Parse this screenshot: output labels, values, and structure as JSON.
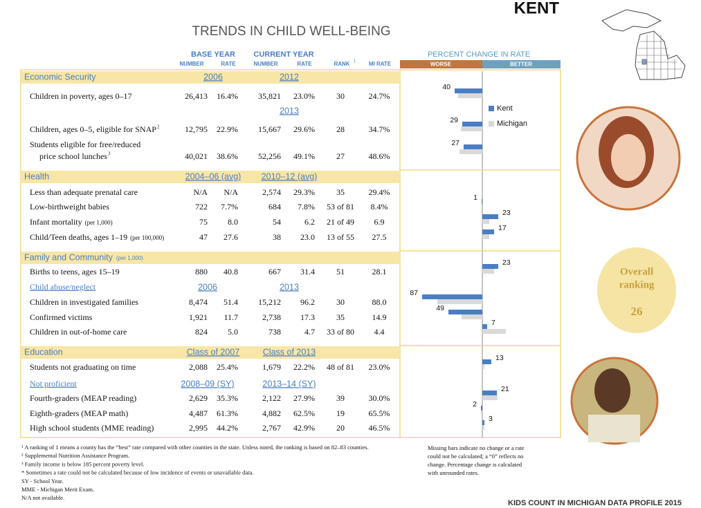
{
  "header": {
    "county": "KENT",
    "title": "TRENDS IN CHILD WELL-BEING"
  },
  "columns": {
    "base_year": "BASE YEAR",
    "current_year": "CURRENT YEAR",
    "sub": [
      "NUMBER",
      "RATE",
      "NUMBER",
      "RATE"
    ],
    "rank": "RANK",
    "rank_mark": "1",
    "mi_rate": "MI RATE"
  },
  "chart": {
    "title": "PERCENT CHANGE IN RATE",
    "worse": "WORSE",
    "better": "BETTER",
    "series": [
      {
        "name": "Kent",
        "color": "#4a7ec4",
        "values": [
          40,
          29,
          27,
          null,
          1,
          23,
          17,
          23,
          87,
          49,
          7,
          13,
          21,
          2,
          3
        ],
        "directions": [
          "worse",
          "worse",
          "worse",
          null,
          "worse",
          "better",
          "better",
          "better",
          "worse",
          "worse",
          "better",
          "better",
          "better",
          "worse",
          "better"
        ]
      },
      {
        "name": "Michigan",
        "color": "#d9d9d9",
        "values": [
          35,
          31,
          33,
          null,
          null,
          10,
          10,
          17,
          65,
          30,
          34,
          3,
          22,
          2,
          3
        ],
        "directions": [
          "worse",
          "worse",
          "worse",
          null,
          null,
          "better",
          "better",
          "better",
          "worse",
          "worse",
          "better",
          "better",
          "better",
          "worse",
          "better"
        ]
      }
    ]
  },
  "sections": [
    {
      "name": "Economic Security",
      "base": "2006",
      "current": "2012",
      "rows": [
        {
          "label": "Children in poverty, ages 0–17",
          "cells": [
            "26,413",
            "16.4%",
            "35,821",
            "23.0%",
            "30",
            "24.7%"
          ]
        },
        {
          "current": "2013"
        },
        {
          "label": "Children, ages 0–5, eligible for SNAP",
          "sup": "2",
          "cells": [
            "12,795",
            "22.9%",
            "15,667",
            "29.6%",
            "28",
            "34.7%"
          ]
        },
        {
          "label_lines": [
            "Students eligible for free/reduced",
            "price school lunches"
          ],
          "sup": "3",
          "cells": [
            "40,021",
            "38.6%",
            "52,256",
            "49.1%",
            "27",
            "48.6%"
          ]
        }
      ]
    },
    {
      "name": "Health",
      "base": "2004–06 (avg)",
      "current": "2010–12 (avg)",
      "rows": [
        {
          "label": "Less than adequate prenatal care",
          "cells": [
            "N/A",
            "N/A",
            "2,574",
            "29.3%",
            "35",
            "29.4%"
          ]
        },
        {
          "label": "Low-birthweight babies",
          "cells": [
            "722",
            "7.7%",
            "684",
            "7.8%",
            "53 of 81",
            "8.4%"
          ]
        },
        {
          "label": "Infant mortality",
          "note": "(per 1,000)",
          "cells": [
            "75",
            "8.0",
            "54",
            "6.2",
            "21 of 49",
            "6.9"
          ]
        },
        {
          "label": "Child/Teen deaths, ages 1–19",
          "note": "(per 100,000)",
          "cells": [
            "47",
            "27.6",
            "38",
            "23.0",
            "13 of 55",
            "27.5"
          ]
        }
      ]
    },
    {
      "name": "Family and Community",
      "note": "(per 1,000)",
      "rows": [
        {
          "label": "Births to teens, ages 15–19",
          "cells": [
            "880",
            "40.8",
            "667",
            "31.4",
            "51",
            "28.1"
          ]
        },
        {
          "label": "Child abuse/neglect",
          "base": "2006",
          "current": "2013"
        },
        {
          "label": "Children in investigated families",
          "cells": [
            "8,474",
            "51.4",
            "15,212",
            "96.2",
            "30",
            "88.0"
          ]
        },
        {
          "label": "Confirmed victims",
          "cells": [
            "1,921",
            "11.7",
            "2,738",
            "17.3",
            "35",
            "14.9"
          ]
        },
        {
          "label": "Children in out-of-home care",
          "cells": [
            "824",
            "5.0",
            "738",
            "4.7",
            "33 of 80",
            "4.4"
          ]
        }
      ]
    },
    {
      "name": "Education",
      "base": "Class of 2007",
      "current": "Class of 2013",
      "rows": [
        {
          "label": "Students not graduating on time",
          "cells": [
            "2,088",
            "25.4%",
            "1,679",
            "22.2%",
            "48 of 81",
            "23.0%"
          ]
        },
        {
          "label": "Not proficient",
          "base": "2008–09 (SY)",
          "current": "2013–14 (SY)"
        },
        {
          "label": "Fourth-graders (MEAP reading)",
          "cells": [
            "2,629",
            "35.3%",
            "2,122",
            "27.9%",
            "39",
            "30.0%"
          ]
        },
        {
          "label": "Eighth-graders (MEAP math)",
          "cells": [
            "4,487",
            "61.3%",
            "4,882",
            "62.5%",
            "19",
            "65.5%"
          ]
        },
        {
          "label": "High school students (MME reading)",
          "cells": [
            "2,995",
            "44.2%",
            "2,767",
            "42.9%",
            "20",
            "46.5%"
          ]
        }
      ]
    }
  ],
  "ranking": {
    "label_lines": [
      "Overall",
      "ranking"
    ],
    "value": "26"
  },
  "footnotes": [
    "¹  A ranking of 1 means a county has the “best” rate compared with other counties in the state. Unless noted, the ranking is based on 82–83 counties.",
    "²  Supplemental Nutrition Assistance Program.",
    "³  Family income is below 185 percent poverty level.",
    "*  Sometimes a rate could not be calculated because of low incidence of events or unavailable data.",
    "SY - School Year.",
    "MME - Michigan Merit Exam.",
    "N/A not available."
  ],
  "side_note": [
    "Missing bars indicate no change or a rate",
    "could not be calculated; a “0” reflects no",
    "change. Percentage change is calculated",
    "with unrounded rates."
  ],
  "footer": "KIDS COUNT IN MICHIGAN DATA PROFILE 2015"
}
